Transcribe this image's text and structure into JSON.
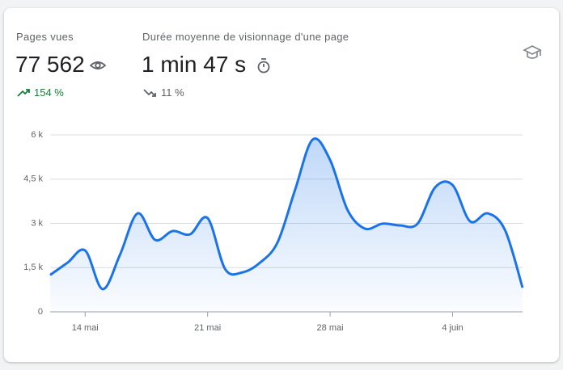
{
  "kpis": [
    {
      "label": "Pages vues",
      "value": "77 562",
      "change": "154 %"
    },
    {
      "label": "Durée moyenne de visionnage d'une page",
      "value": "1 min 47 s",
      "change": "11 %"
    }
  ],
  "chart_data": {
    "type": "line",
    "categories": [
      null,
      null,
      "14 mai",
      null,
      null,
      null,
      null,
      null,
      null,
      "21 mai",
      null,
      null,
      null,
      null,
      null,
      null,
      "28 mai",
      null,
      null,
      null,
      null,
      null,
      null,
      "4 juin",
      null,
      null,
      null,
      null
    ],
    "series": [
      {
        "color": "#1a73e8",
        "values": [
          1250,
          1670,
          2080,
          770,
          1950,
          3340,
          2440,
          2740,
          2630,
          3180,
          1450,
          1340,
          1670,
          2360,
          4140,
          5840,
          5150,
          3450,
          2820,
          2990,
          2930,
          2990,
          4220,
          4300,
          3070,
          3340,
          2770,
          820
        ]
      }
    ],
    "ylim": [
      0,
      6000
    ],
    "yticks": [
      0,
      {
        "value": 1500,
        "label": "1,5 k"
      },
      {
        "value": 3000,
        "label": "3 k"
      },
      {
        "value": 4500,
        "label": "4,5 k"
      },
      {
        "value": 6000,
        "label": "6 k"
      }
    ],
    "grid": true
  }
}
